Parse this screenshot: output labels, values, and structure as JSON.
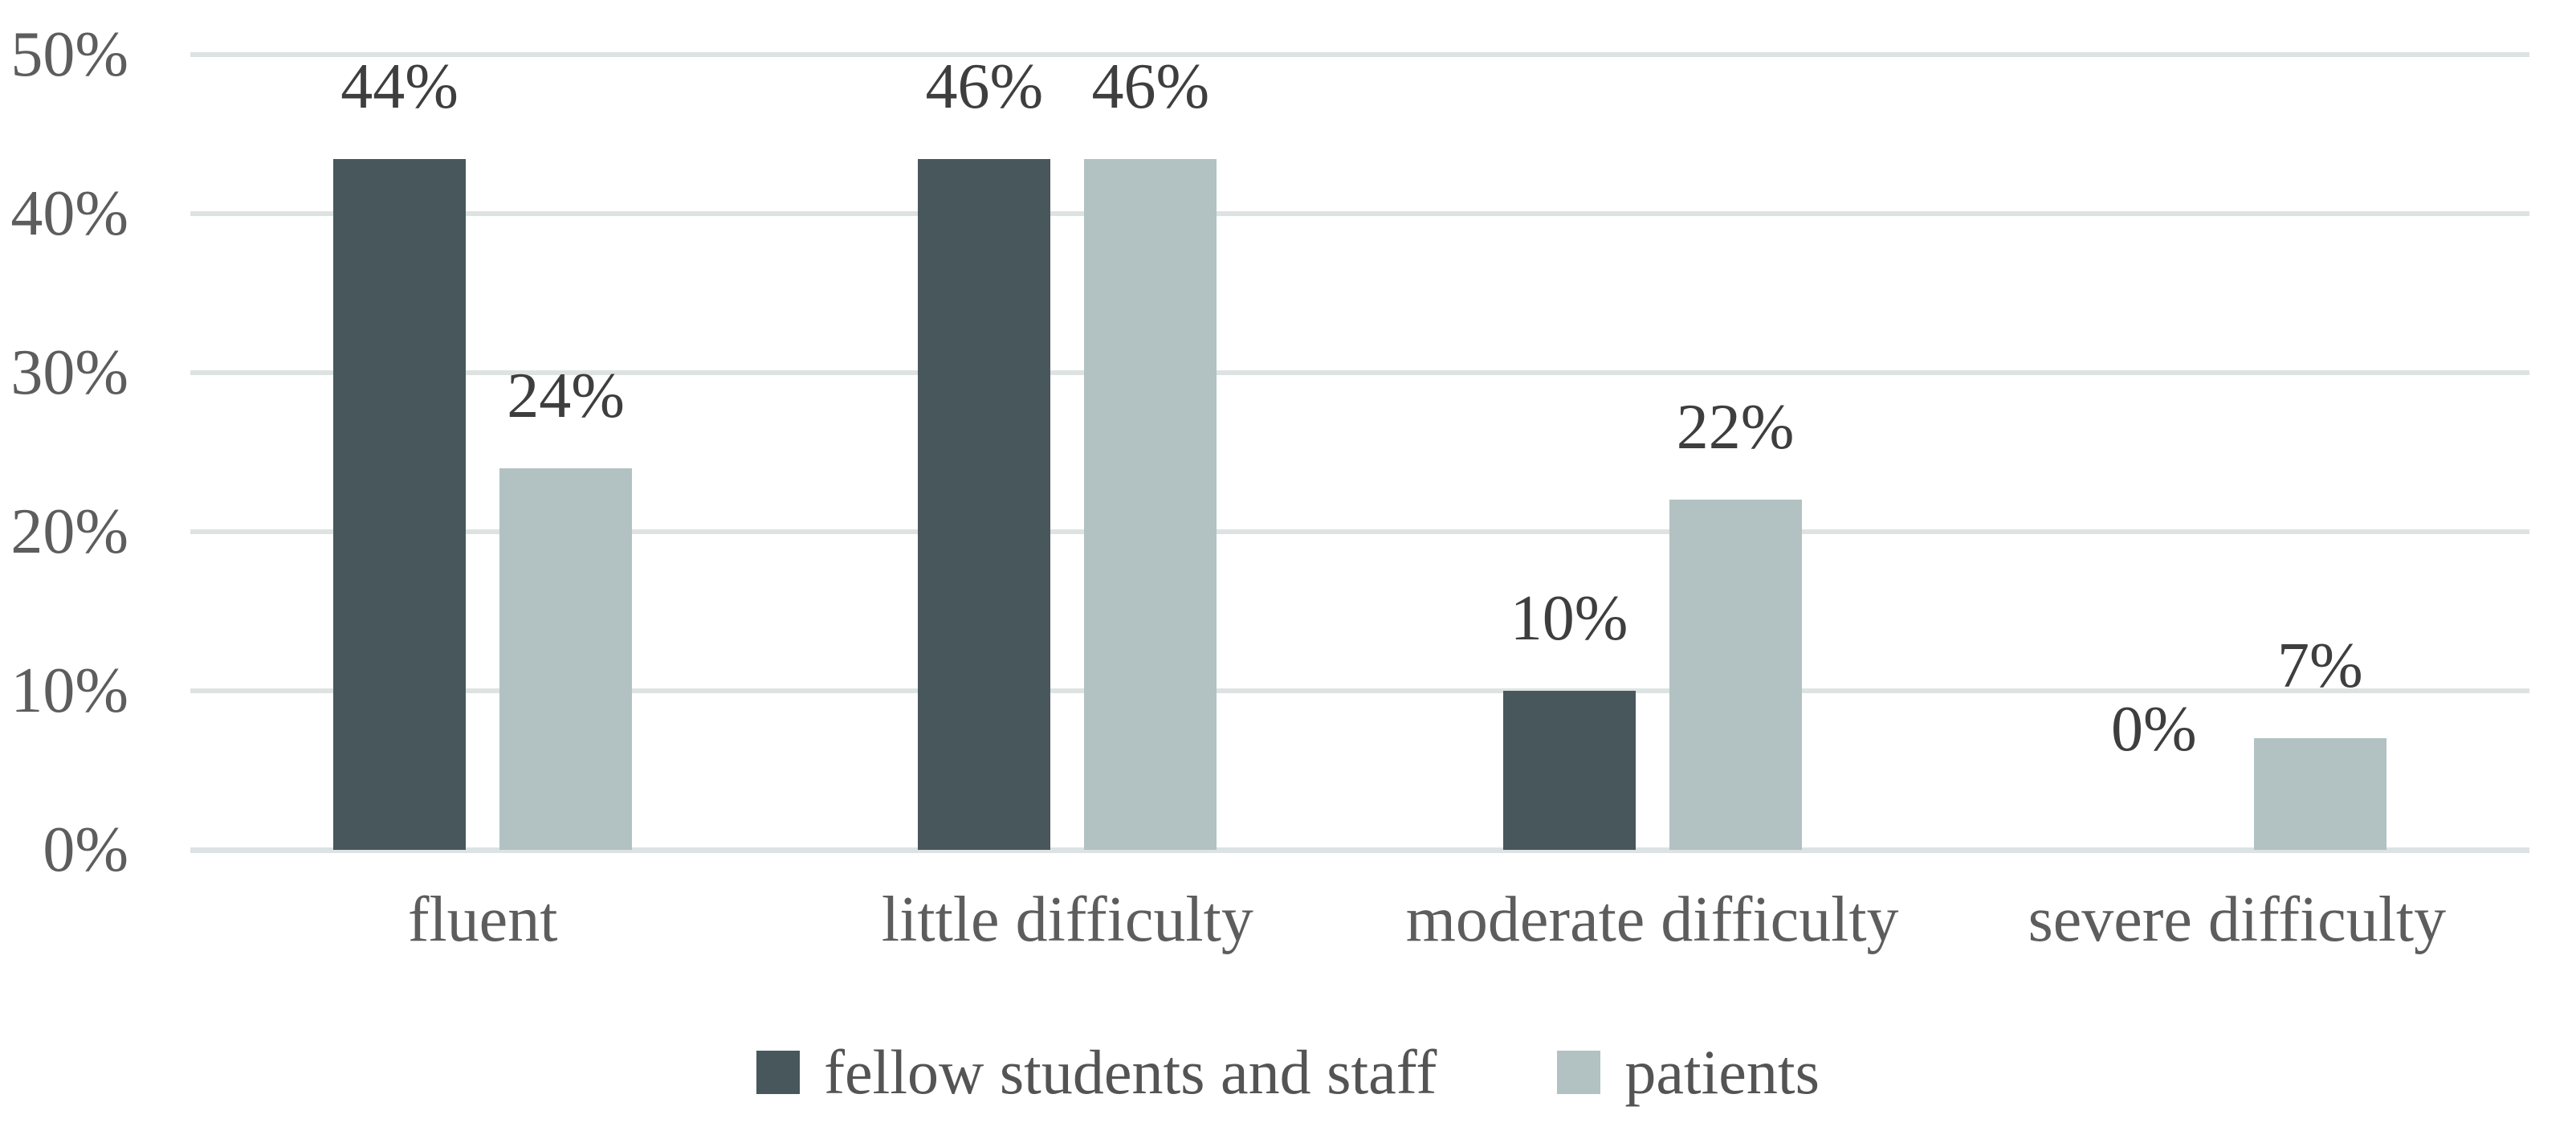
{
  "chart_data": {
    "type": "bar",
    "title": "",
    "xlabel": "",
    "ylabel": "",
    "categories": [
      "fluent",
      "little difficulty",
      "moderate difficulty",
      "severe difficulty"
    ],
    "series": [
      {
        "name": "fellow students and staff",
        "color": "#48575c",
        "values": [
          44,
          46,
          10,
          0
        ],
        "labels": [
          "44%",
          "46%",
          "10%",
          "0%"
        ]
      },
      {
        "name": "patients",
        "color": "#b2c1c1",
        "values": [
          24,
          46.4,
          22,
          7
        ],
        "labels": [
          "24%",
          "46%",
          "22%",
          "7%"
        ]
      }
    ],
    "y_axis": {
      "min": 0,
      "max": 50,
      "tick_step": 10,
      "tick_labels": [
        "50%",
        "40%",
        "30%",
        "20%",
        "10%",
        "0%"
      ],
      "grid": true
    },
    "legend_position": "bottom",
    "colors": {
      "gridline": "#dde3e2",
      "tick_text": "#5d5d5d",
      "category_text": "#5d5d5d",
      "value_text": "#3e3e3e",
      "legend_text": "#545454",
      "background": "#ffffff"
    }
  }
}
